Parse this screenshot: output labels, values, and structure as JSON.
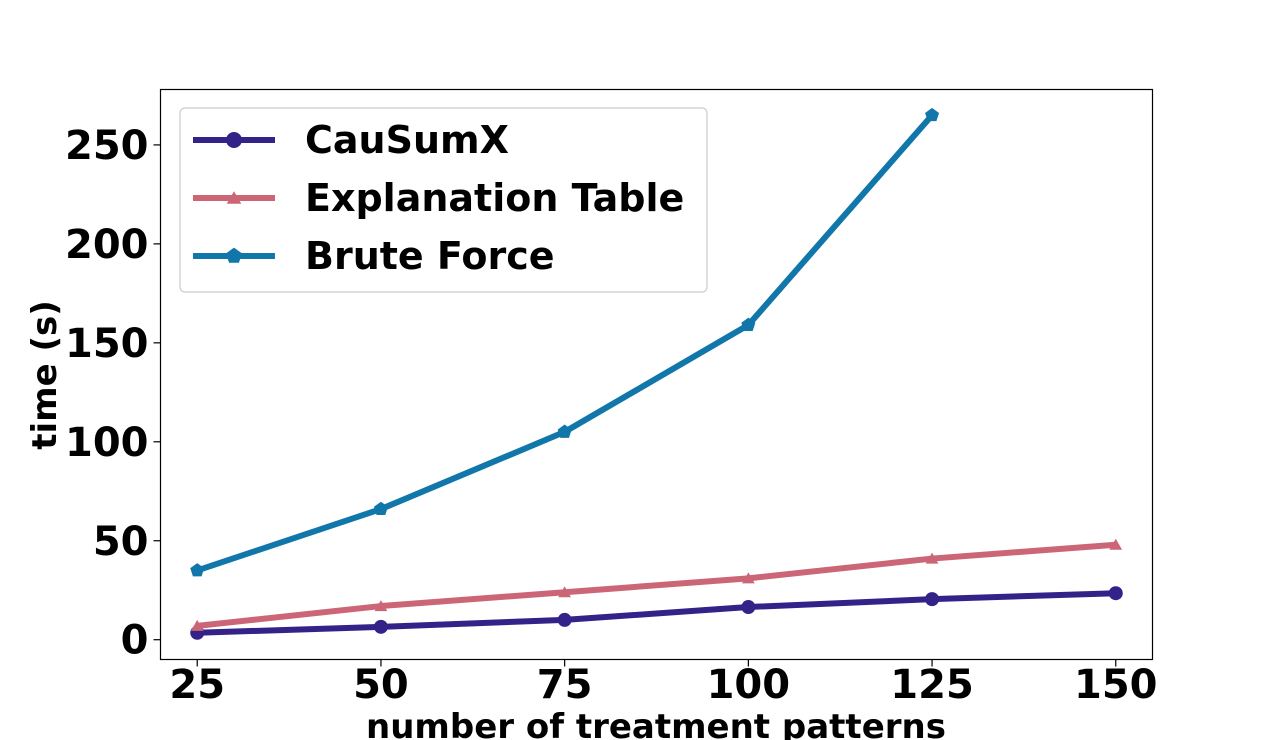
{
  "chart_data": {
    "type": "line",
    "title": "",
    "xlabel": "number of treatment patterns",
    "ylabel": "time (s)",
    "xlim": [
      20,
      155
    ],
    "ylim": [
      -10,
      278
    ],
    "xticks": [
      25,
      50,
      75,
      100,
      125,
      150
    ],
    "yticks": [
      0,
      50,
      100,
      150,
      200,
      250
    ],
    "grid": false,
    "legend": "top-left",
    "series": [
      {
        "name": "CauSumX",
        "color": "#332288",
        "marker": "circle",
        "x": [
          25,
          50,
          75,
          100,
          125,
          150
        ],
        "y": [
          3.5,
          6.5,
          10,
          16.5,
          20.5,
          23.5
        ]
      },
      {
        "name": "Explanation Table",
        "color": "#CC6677",
        "marker": "triangle",
        "x": [
          25,
          50,
          75,
          100,
          125,
          150
        ],
        "y": [
          7,
          17,
          24,
          31,
          41,
          48
        ]
      },
      {
        "name": "Brute Force",
        "color": "#1177AA",
        "marker": "pentagon",
        "x": [
          25,
          50,
          75,
          100,
          125
        ],
        "y": [
          35,
          66,
          105,
          159,
          265
        ]
      }
    ]
  }
}
